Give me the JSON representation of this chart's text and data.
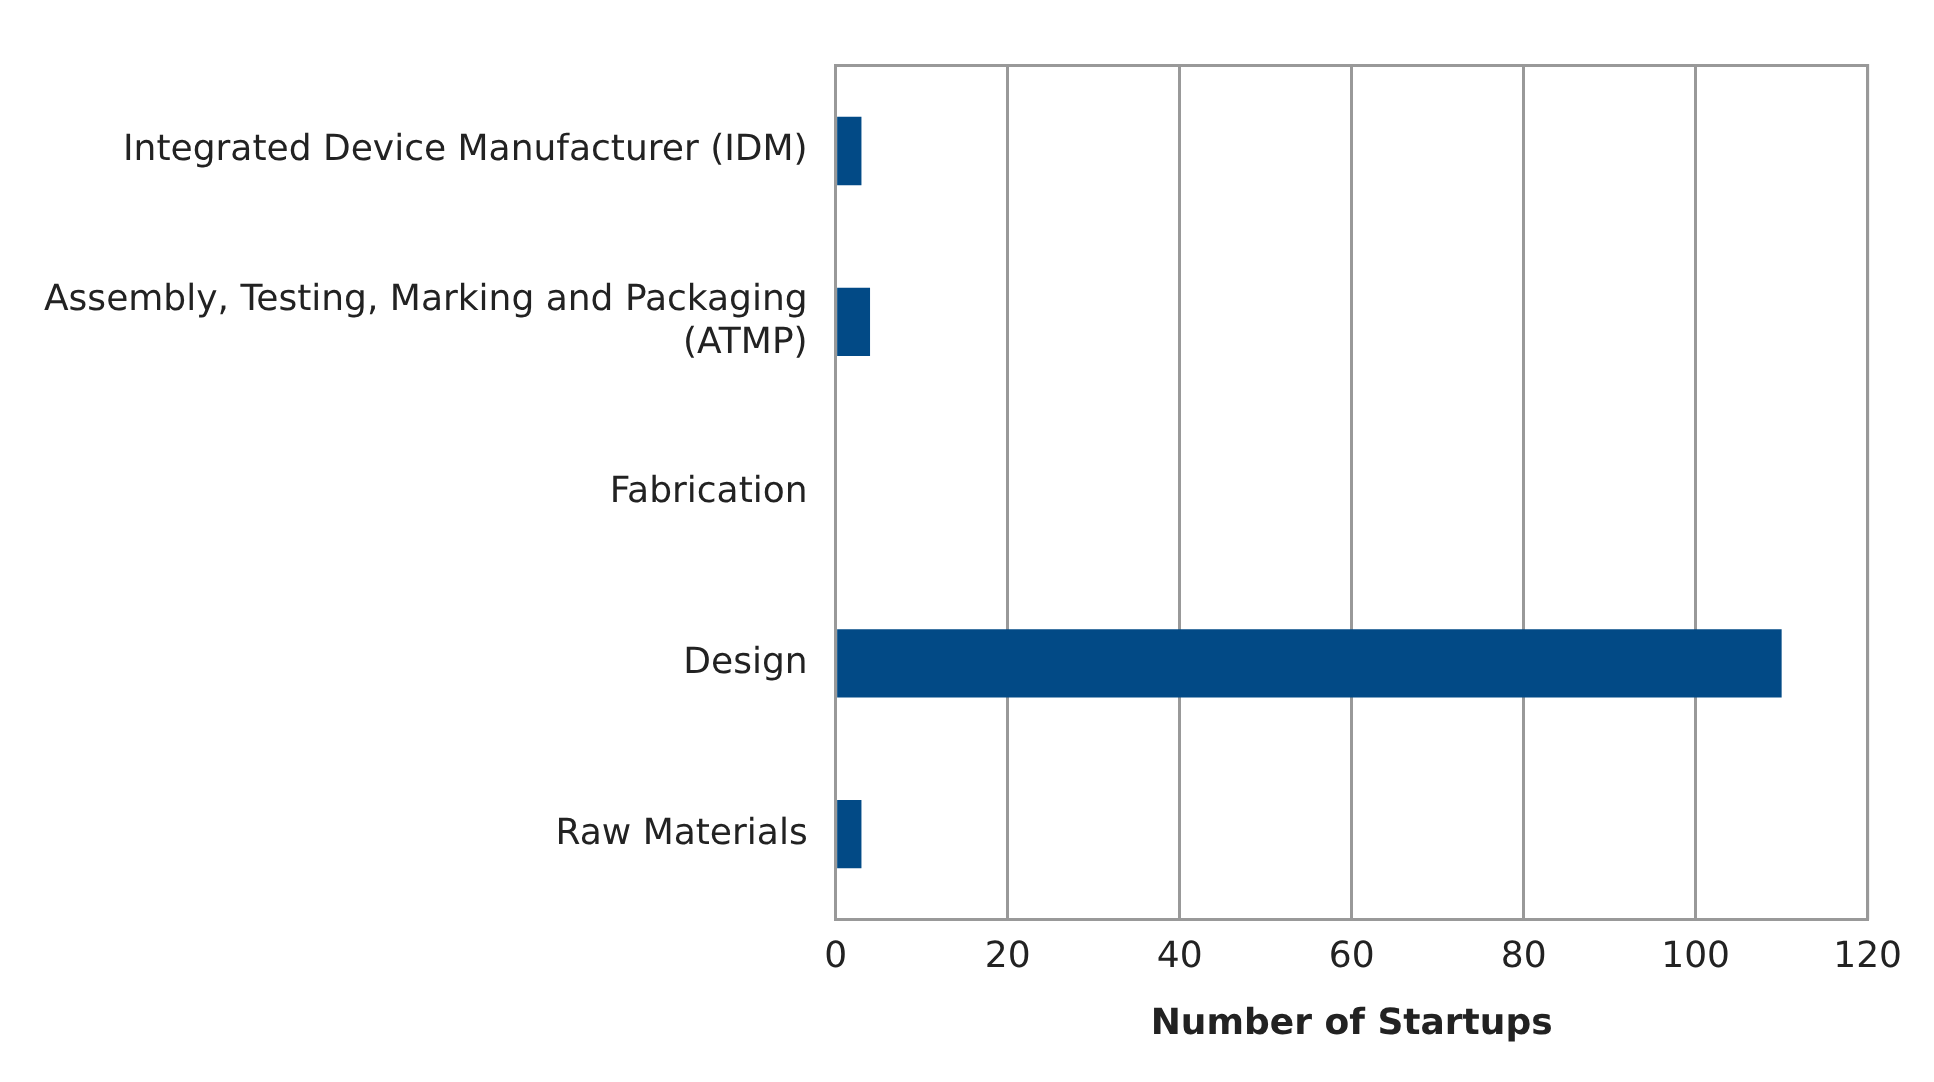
{
  "chart_data": {
    "type": "bar",
    "orientation": "horizontal",
    "xlabel": "Number of Startups",
    "categories": [
      "Integrated Device Manufacturer (IDM)",
      "Assembly, Testing, Marking and Packaging (ATMP)",
      "Fabrication",
      "Design",
      "Raw Materials"
    ],
    "values": [
      3,
      4,
      0,
      110,
      3
    ],
    "color": "#024a86",
    "xlim": [
      0,
      120
    ],
    "xticks": [
      0,
      20,
      40,
      60,
      80,
      100,
      120
    ],
    "grid": "x"
  }
}
